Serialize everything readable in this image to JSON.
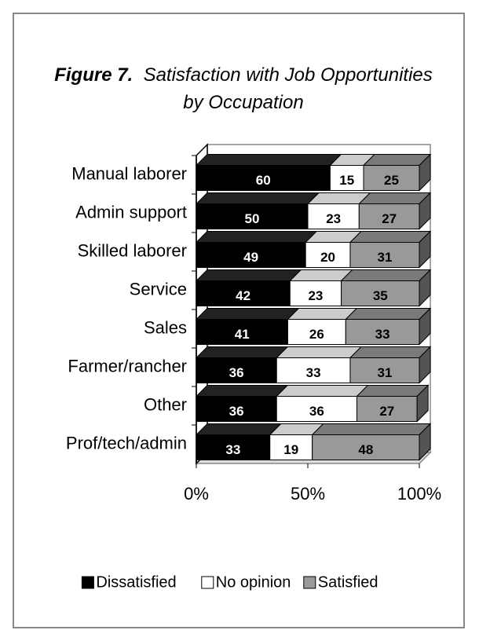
{
  "chart_data": {
    "type": "stacked_bar_3d",
    "orientation": "horizontal",
    "title_label": "Figure 7.",
    "title": "Satisfaction with Job Opportunities by Occupation",
    "categories": [
      "Manual laborer",
      "Admin support",
      "Skilled laborer",
      "Service",
      "Sales",
      "Farmer/rancher",
      "Other",
      "Prof/tech/admin"
    ],
    "series": [
      {
        "name": "Dissatisfied",
        "color": "#000000",
        "values": [
          60,
          50,
          49,
          42,
          41,
          36,
          36,
          33
        ]
      },
      {
        "name": "No opinion",
        "color": "#ffffff",
        "values": [
          15,
          23,
          20,
          23,
          26,
          33,
          36,
          19
        ]
      },
      {
        "name": "Satisfied",
        "color": "#999999",
        "values": [
          25,
          27,
          31,
          35,
          33,
          31,
          27,
          48
        ]
      }
    ],
    "xlim": [
      0,
      100
    ],
    "xticks": [
      {
        "value": 0,
        "label": "0%"
      },
      {
        "value": 50,
        "label": "50%"
      },
      {
        "value": 100,
        "label": "100%"
      }
    ],
    "legend": "bottom"
  }
}
